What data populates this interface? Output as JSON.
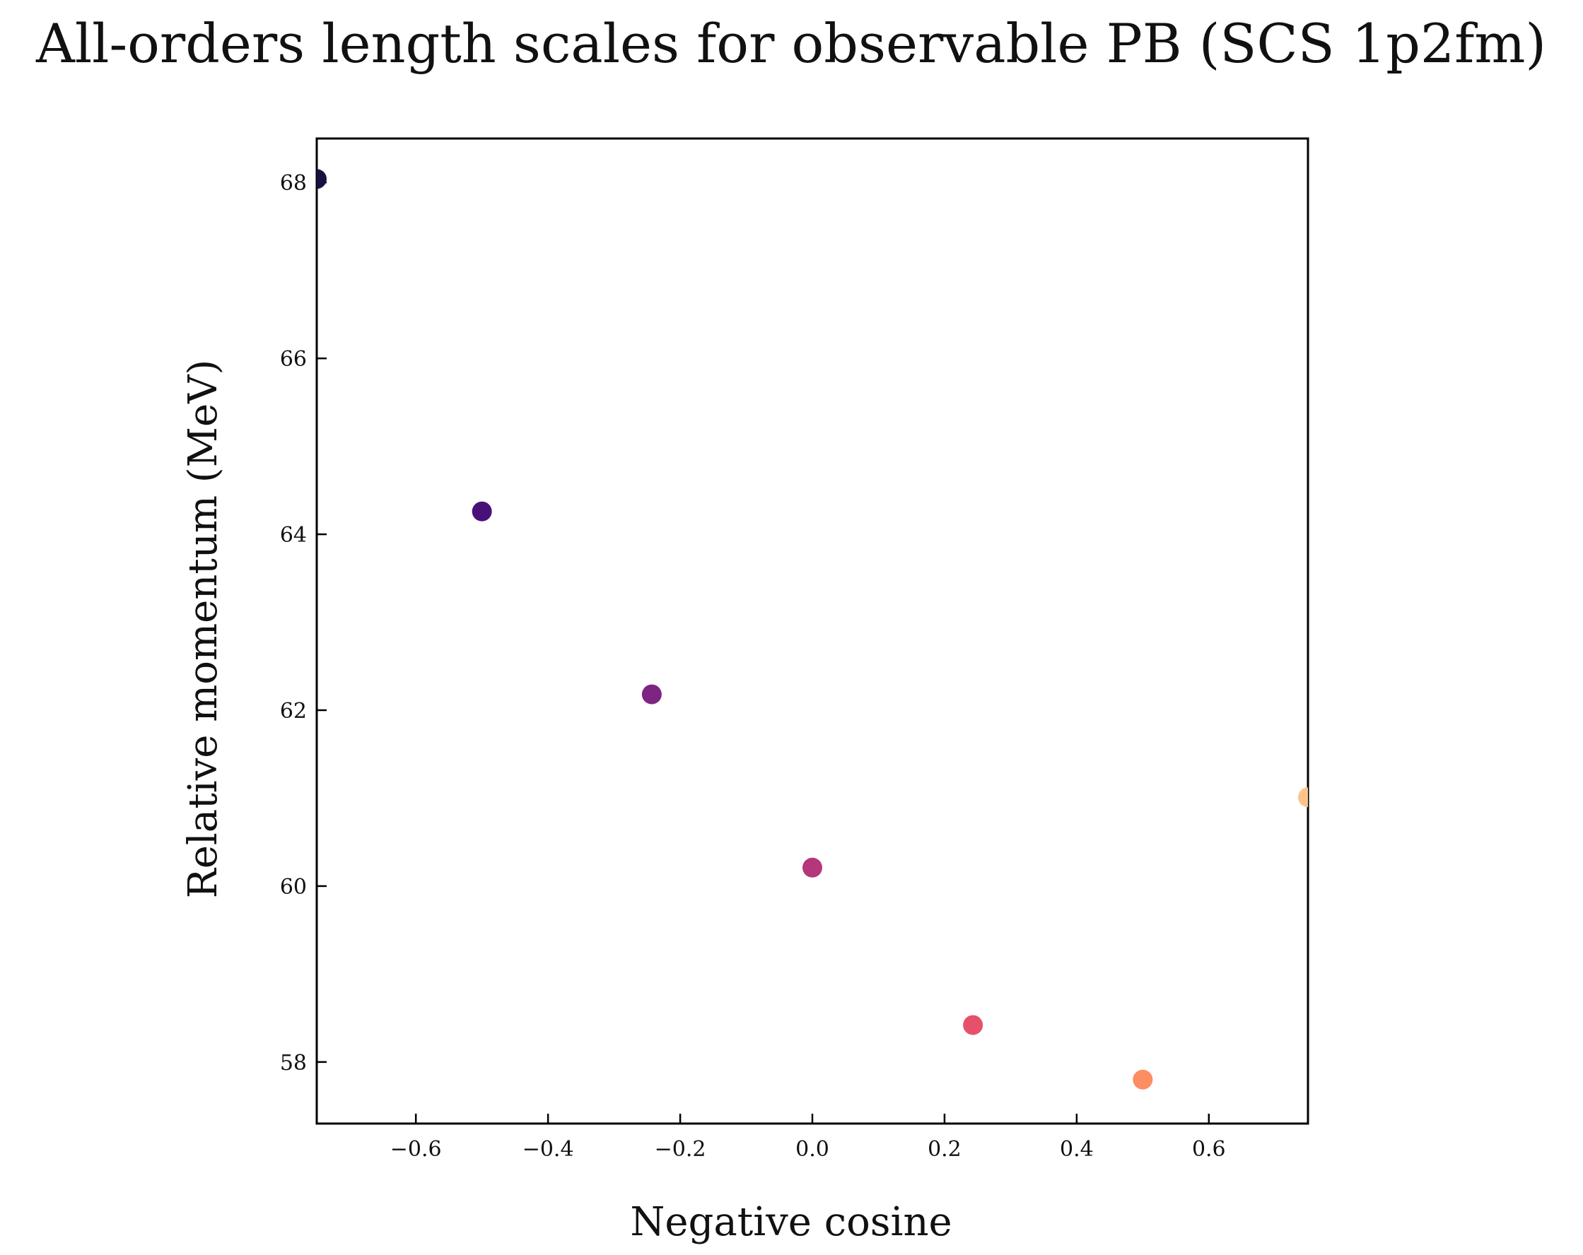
{
  "chart_data": {
    "type": "scatter",
    "title": "All-orders length scales for observable PB (SCS 1p2fm)",
    "xlabel": "Negative cosine",
    "ylabel": "Relative momentum (MeV)",
    "xlim": [
      -0.75,
      0.75
    ],
    "ylim": [
      57.3,
      68.5
    ],
    "xticks": [
      -0.6,
      -0.4,
      -0.2,
      0.0,
      0.2,
      0.4,
      0.6
    ],
    "xtick_labels": [
      "−0.6",
      "−0.4",
      "−0.2",
      "0.0",
      "0.2",
      "0.4",
      "0.6"
    ],
    "yticks": [
      58,
      60,
      62,
      64,
      66,
      68
    ],
    "ytick_labels": [
      "58",
      "60",
      "62",
      "64",
      "66",
      "68"
    ],
    "grid": false,
    "points": [
      {
        "x": -0.75,
        "y": 68.04,
        "color": "#1a1042"
      },
      {
        "x": -0.5,
        "y": 64.26,
        "color": "#4a1079"
      },
      {
        "x": -0.243,
        "y": 62.18,
        "color": "#7e2482"
      },
      {
        "x": 0.0,
        "y": 60.21,
        "color": "#b5367a"
      },
      {
        "x": 0.243,
        "y": 58.42,
        "color": "#e7506a"
      },
      {
        "x": 0.5,
        "y": 57.8,
        "color": "#fd8d62"
      },
      {
        "x": 0.75,
        "y": 61.01,
        "color": "#fcc48a"
      }
    ]
  }
}
